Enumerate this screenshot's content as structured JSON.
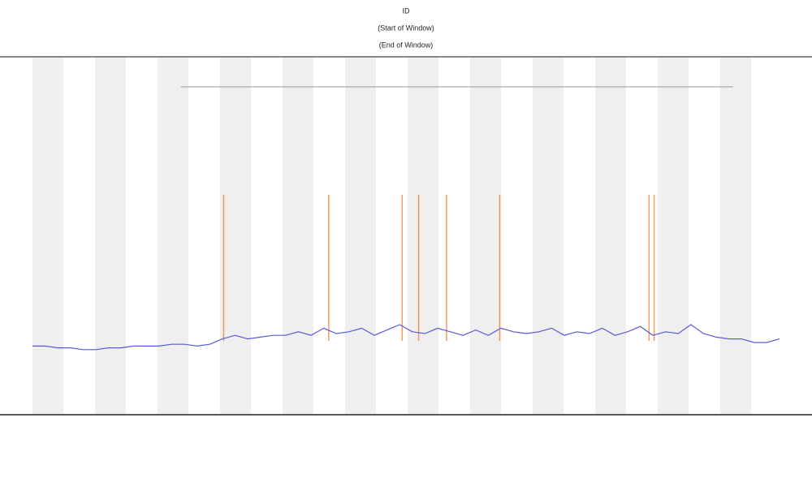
{
  "chart_data": {
    "type": "line",
    "title": "ID",
    "subtitles": [
      "(Start of Window)",
      "(End of Window)"
    ],
    "x": [
      0,
      1,
      2,
      3,
      4,
      5,
      6,
      7,
      8,
      9,
      10,
      11,
      12,
      13,
      14,
      15,
      16,
      17,
      18,
      19,
      20,
      21,
      22,
      23,
      24,
      25,
      26,
      27,
      28,
      29,
      30,
      31,
      32,
      33,
      34,
      35,
      36,
      37,
      38,
      39,
      40,
      41,
      42,
      43,
      44,
      45,
      46,
      47,
      48,
      49,
      50,
      51,
      52,
      53,
      54,
      55,
      56,
      57,
      58,
      59
    ],
    "xlim": [
      0,
      59
    ],
    "ylim": [
      0,
      100
    ],
    "series": [
      {
        "color": "#5a5ad6",
        "values": [
          19,
          19,
          18.5,
          18.5,
          18,
          18,
          18.5,
          18.5,
          19,
          19,
          19,
          19.5,
          19.5,
          19,
          19.5,
          21,
          22,
          21,
          21.5,
          22,
          22,
          23,
          22,
          24,
          22.5,
          23,
          24,
          22,
          23.5,
          25,
          23,
          22.5,
          24,
          23,
          22,
          23.5,
          22,
          24,
          23,
          22.5,
          23,
          24,
          22,
          23,
          22.5,
          24,
          22,
          23,
          24.5,
          22,
          23,
          22.5,
          25,
          22.5,
          21.5,
          21,
          21,
          20,
          20,
          21
        ]
      }
    ],
    "markers": {
      "color": "#e8732a",
      "x": [
        15.1,
        23.4,
        29.2,
        30.5,
        32.7,
        36.9,
        48.7,
        49.1
      ]
    }
  }
}
